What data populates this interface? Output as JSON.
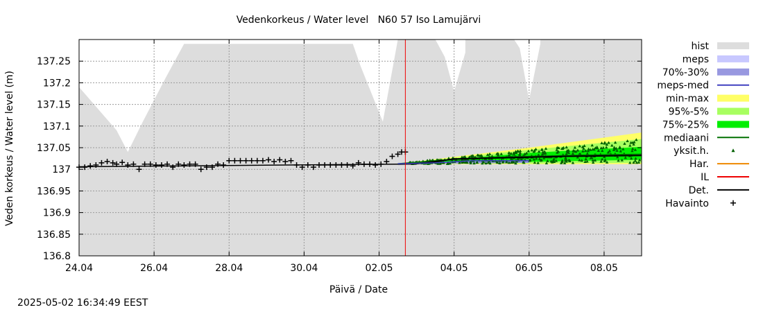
{
  "chart_data": {
    "type": "line",
    "title": "Vedenkorkeus / Water level   N60 57 Iso Lamujärvi",
    "xlabel": "Päivä / Date",
    "ylabel": "Veden korkeus / Water level (m)",
    "x_range_days": [
      0,
      15
    ],
    "x_ticks": [
      {
        "day": 0,
        "label": "24.04"
      },
      {
        "day": 2,
        "label": "26.04"
      },
      {
        "day": 4,
        "label": "28.04"
      },
      {
        "day": 6,
        "label": "30.04"
      },
      {
        "day": 8,
        "label": "02.05"
      },
      {
        "day": 10,
        "label": "04.05"
      },
      {
        "day": 12,
        "label": "06.05"
      },
      {
        "day": 14,
        "label": "08.05"
      }
    ],
    "ylim": [
      136.8,
      137.3
    ],
    "y_ticks": [
      {
        "value": 136.8,
        "label": "136.8"
      },
      {
        "value": 136.85,
        "label": "136.85"
      },
      {
        "value": 136.9,
        "label": "136.9"
      },
      {
        "value": 136.95,
        "label": "136.95"
      },
      {
        "value": 137.0,
        "label": "137"
      },
      {
        "value": 137.05,
        "label": "137.05"
      },
      {
        "value": 137.1,
        "label": "137.1"
      },
      {
        "value": 137.15,
        "label": "137.15"
      },
      {
        "value": 137.2,
        "label": "137.2"
      },
      {
        "value": 137.25,
        "label": "137.25"
      }
    ],
    "grid": true,
    "legend_position": "right",
    "now_line_day": 8.7,
    "hist_upper": [
      [
        0,
        137.19
      ],
      [
        1,
        137.09
      ],
      [
        1.3,
        137.04
      ],
      [
        1.7,
        137.11
      ],
      [
        2.3,
        137.21
      ],
      [
        2.8,
        137.29
      ],
      [
        7.3,
        137.29
      ],
      [
        7.5,
        137.24
      ],
      [
        8.1,
        137.11
      ],
      [
        8.5,
        137.3
      ],
      [
        9.35,
        137.3
      ],
      [
        9.5,
        137.3
      ],
      [
        9.75,
        137.26
      ],
      [
        10.0,
        137.18
      ],
      [
        10.3,
        137.27
      ],
      [
        10.3,
        137.3
      ],
      [
        11.6,
        137.3
      ],
      [
        11.75,
        137.28
      ],
      [
        12.0,
        137.16
      ],
      [
        12.3,
        137.29
      ],
      [
        12.3,
        137.3
      ],
      [
        15,
        137.3
      ]
    ],
    "observations": [
      [
        0.0,
        137.005
      ],
      [
        0.15,
        137.005
      ],
      [
        0.3,
        137.008
      ],
      [
        0.45,
        137.01
      ],
      [
        0.6,
        137.015
      ],
      [
        0.75,
        137.018
      ],
      [
        0.9,
        137.015
      ],
      [
        1.0,
        137.012
      ],
      [
        1.15,
        137.016
      ],
      [
        1.3,
        137.01
      ],
      [
        1.45,
        137.012
      ],
      [
        1.6,
        137.0
      ],
      [
        1.75,
        137.012
      ],
      [
        1.9,
        137.012
      ],
      [
        2.05,
        137.01
      ],
      [
        2.2,
        137.01
      ],
      [
        2.35,
        137.012
      ],
      [
        2.5,
        137.005
      ],
      [
        2.65,
        137.012
      ],
      [
        2.8,
        137.01
      ],
      [
        2.95,
        137.012
      ],
      [
        3.1,
        137.012
      ],
      [
        3.25,
        137.0
      ],
      [
        3.4,
        137.005
      ],
      [
        3.55,
        137.005
      ],
      [
        3.7,
        137.012
      ],
      [
        3.85,
        137.01
      ],
      [
        4.0,
        137.02
      ],
      [
        4.15,
        137.02
      ],
      [
        4.3,
        137.02
      ],
      [
        4.45,
        137.02
      ],
      [
        4.6,
        137.02
      ],
      [
        4.75,
        137.02
      ],
      [
        4.9,
        137.02
      ],
      [
        5.05,
        137.022
      ],
      [
        5.2,
        137.018
      ],
      [
        5.35,
        137.022
      ],
      [
        5.5,
        137.018
      ],
      [
        5.65,
        137.02
      ],
      [
        5.8,
        137.01
      ],
      [
        5.95,
        137.005
      ],
      [
        6.1,
        137.01
      ],
      [
        6.25,
        137.005
      ],
      [
        6.4,
        137.01
      ],
      [
        6.55,
        137.01
      ],
      [
        6.7,
        137.01
      ],
      [
        6.85,
        137.01
      ],
      [
        7.0,
        137.01
      ],
      [
        7.15,
        137.01
      ],
      [
        7.3,
        137.008
      ],
      [
        7.45,
        137.015
      ],
      [
        7.6,
        137.012
      ],
      [
        7.75,
        137.012
      ],
      [
        7.9,
        137.01
      ],
      [
        8.05,
        137.012
      ],
      [
        8.2,
        137.018
      ],
      [
        8.35,
        137.03
      ],
      [
        8.5,
        137.035
      ],
      [
        8.6,
        137.04
      ],
      [
        8.7,
        137.04
      ]
    ],
    "forecast_start": [
      8.5,
      137.013
    ],
    "forecast_end": 15,
    "series": [
      {
        "name": "mediaani",
        "color": "#007000",
        "values": [
          [
            8.5,
            137.013
          ],
          [
            9.5,
            137.02
          ],
          [
            10.5,
            137.026
          ],
          [
            11.5,
            137.029
          ],
          [
            12.5,
            137.031
          ],
          [
            13.5,
            137.033
          ],
          [
            15,
            137.035
          ]
        ]
      },
      {
        "name": "Det.",
        "color": "#000000",
        "values": [
          [
            8.5,
            137.012
          ],
          [
            9.0,
            137.013
          ],
          [
            9.5,
            137.018
          ],
          [
            10.0,
            137.024
          ],
          [
            11.0,
            137.026
          ],
          [
            12.0,
            137.028
          ],
          [
            13.0,
            137.03
          ],
          [
            14.0,
            137.031
          ],
          [
            15,
            137.032
          ]
        ]
      },
      {
        "name": "meps-med",
        "color": "#4040c0",
        "values": [
          [
            8.5,
            137.013
          ],
          [
            9.5,
            137.015
          ],
          [
            10.5,
            137.02
          ],
          [
            12.0,
            137.02
          ]
        ]
      }
    ],
    "bands": {
      "min_max": {
        "lower": [
          [
            8.5,
            137.012
          ],
          [
            15,
            137.012
          ]
        ],
        "upper": [
          [
            8.5,
            137.013
          ],
          [
            12,
            137.05
          ],
          [
            15,
            137.085
          ]
        ]
      },
      "p95_5": {
        "lower": [
          [
            8.5,
            137.012
          ],
          [
            15,
            137.015
          ]
        ],
        "upper": [
          [
            8.5,
            137.013
          ],
          [
            12,
            137.045
          ],
          [
            15,
            137.07
          ]
        ]
      },
      "p75_25": {
        "lower": [
          [
            8.5,
            137.012
          ],
          [
            15,
            137.022
          ]
        ],
        "upper": [
          [
            8.5,
            137.013
          ],
          [
            12,
            137.038
          ],
          [
            15,
            137.052
          ]
        ]
      },
      "meps_70_30": {
        "lower": [
          [
            8.5,
            137.012
          ],
          [
            12,
            137.015
          ]
        ],
        "upper": [
          [
            8.5,
            137.013
          ],
          [
            12,
            137.022
          ]
        ]
      }
    }
  },
  "legend": [
    {
      "label": "hist",
      "kind": "box",
      "color": "#dddddd"
    },
    {
      "label": "meps",
      "kind": "box",
      "color": "#c8c8ff"
    },
    {
      "label": "70%-30%",
      "kind": "box",
      "color": "#9898e0"
    },
    {
      "label": "meps-med",
      "kind": "line",
      "color": "#4040c0"
    },
    {
      "label": "min-max",
      "kind": "box",
      "color": "#ffff66"
    },
    {
      "label": "95%-5%",
      "kind": "box",
      "color": "#a8ff60"
    },
    {
      "label": "75%-25%",
      "kind": "box",
      "color": "#00ee00"
    },
    {
      "label": "mediaani",
      "kind": "line",
      "color": "#007000"
    },
    {
      "label": "yksit.h.",
      "kind": "tri",
      "color": "#006000"
    },
    {
      "label": "Har.",
      "kind": "line",
      "color": "#ee8800"
    },
    {
      "label": "IL",
      "kind": "line",
      "color": "#ee0000"
    },
    {
      "label": "Det.",
      "kind": "line",
      "color": "#000000"
    },
    {
      "label": "Havainto",
      "kind": "plus",
      "color": "#000000"
    }
  ],
  "timestamp": "2025-05-02 16:34:49 EEST"
}
